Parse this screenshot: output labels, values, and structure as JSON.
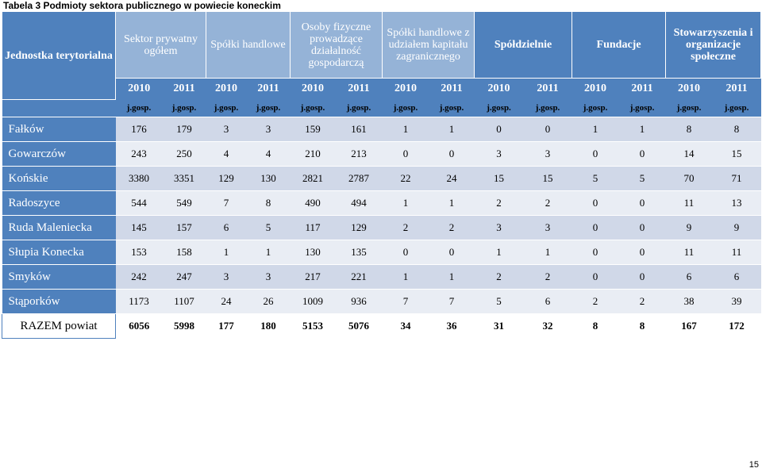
{
  "caption": "Tabela 3 Podmioty sektora publicznego w powiecie koneckim",
  "headers": {
    "jednostka": "Jednostka terytorialna",
    "sektor": "Sektor prywatny ogółem",
    "spolki": "Spółki handlowe",
    "osoby": "Osoby fizyczne prowadzące działalność gospodarczą",
    "zagraniczne": "Spółki handlowe z udziałem kapitału zagranicznego",
    "spoldzielnie": "Spółdzielnie",
    "fundacje": "Fundacje",
    "stowarzyszenia": "Stowarzyszenia i organizacje społeczne"
  },
  "years": [
    "2010",
    "2011",
    "2010",
    "2011",
    "2010",
    "2011",
    "2010",
    "2011",
    "2010",
    "2011",
    "2010",
    "2011",
    "2010",
    "2011"
  ],
  "unit": "j.gosp.",
  "rows": [
    {
      "name": "Fałków",
      "values": [
        "176",
        "179",
        "3",
        "3",
        "159",
        "161",
        "1",
        "1",
        "0",
        "0",
        "1",
        "1",
        "8",
        "8"
      ]
    },
    {
      "name": "Gowarczów",
      "values": [
        "243",
        "250",
        "4",
        "4",
        "210",
        "213",
        "0",
        "0",
        "3",
        "3",
        "0",
        "0",
        "14",
        "15"
      ]
    },
    {
      "name": "Końskie",
      "values": [
        "3380",
        "3351",
        "129",
        "130",
        "2821",
        "2787",
        "22",
        "24",
        "15",
        "15",
        "5",
        "5",
        "70",
        "71"
      ]
    },
    {
      "name": "Radoszyce",
      "values": [
        "544",
        "549",
        "7",
        "8",
        "490",
        "494",
        "1",
        "1",
        "2",
        "2",
        "0",
        "0",
        "11",
        "13"
      ]
    },
    {
      "name": "Ruda Maleniecka",
      "values": [
        "145",
        "157",
        "6",
        "5",
        "117",
        "129",
        "2",
        "2",
        "3",
        "3",
        "0",
        "0",
        "9",
        "9"
      ]
    },
    {
      "name": "Słupia Konecka",
      "values": [
        "153",
        "158",
        "1",
        "1",
        "130",
        "135",
        "0",
        "0",
        "1",
        "1",
        "0",
        "0",
        "11",
        "11"
      ]
    },
    {
      "name": "Smyków",
      "values": [
        "242",
        "247",
        "3",
        "3",
        "217",
        "221",
        "1",
        "1",
        "2",
        "2",
        "0",
        "0",
        "6",
        "6"
      ]
    },
    {
      "name": "Stąporków",
      "values": [
        "1173",
        "1107",
        "24",
        "26",
        "1009",
        "936",
        "7",
        "7",
        "5",
        "6",
        "2",
        "2",
        "38",
        "39"
      ]
    }
  ],
  "total": {
    "name": "RAZEM powiat",
    "values": [
      "6056",
      "5998",
      "177",
      "180",
      "5153",
      "5076",
      "34",
      "36",
      "31",
      "32",
      "8",
      "8",
      "167",
      "172"
    ]
  },
  "page_number": "15"
}
